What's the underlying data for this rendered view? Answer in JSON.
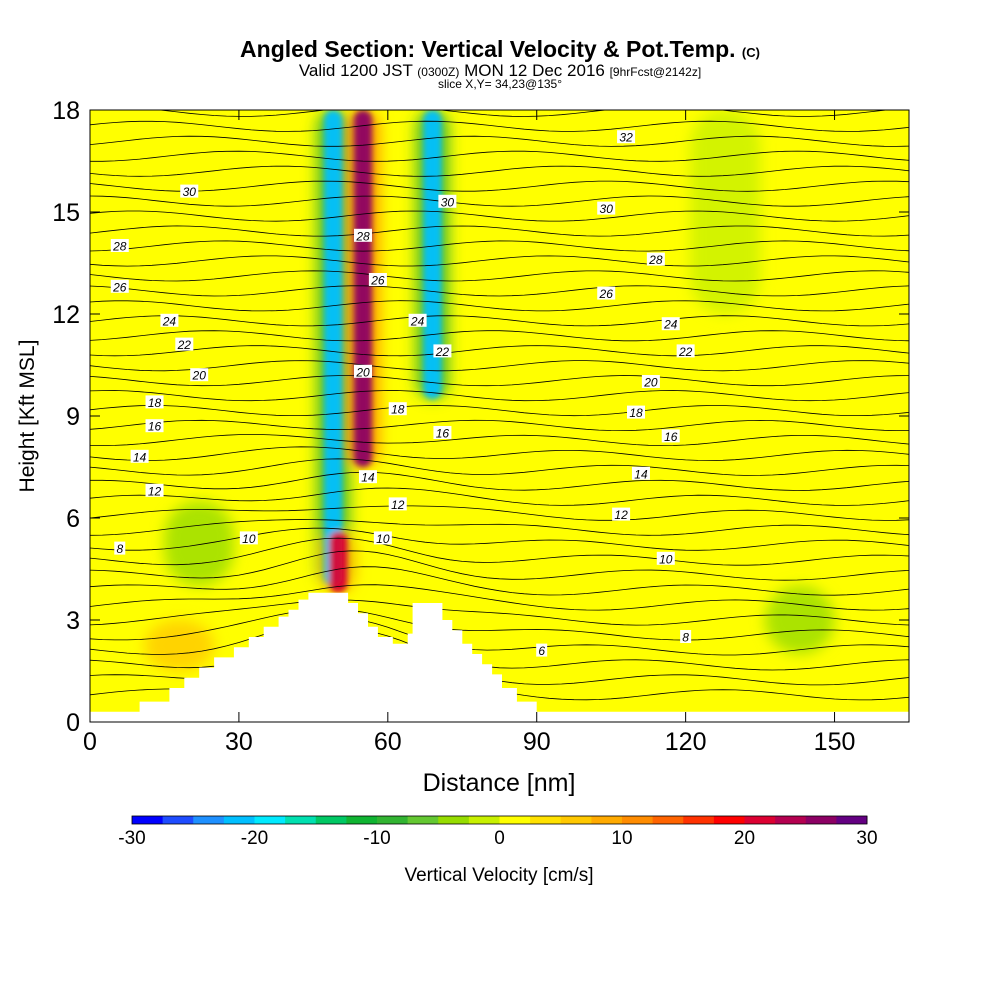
{
  "chart_data": {
    "type": "heatmap",
    "title": "Angled Section: Vertical Velocity & Pot.Temp.",
    "title_unit": "(C)",
    "subtitle": {
      "valid": "Valid 1200 JST",
      "utc": "(0300Z)",
      "date": "MON 12 Dec 2016",
      "forecast": "[9hrFcst@2142z]"
    },
    "slice_label": "slice X,Y= 34,23@135°",
    "xlabel": "Distance [nm]",
    "ylabel": "Height [Kft MSL]",
    "xlim": [
      0,
      165
    ],
    "ylim": [
      0,
      18
    ],
    "x_ticks": [
      "0",
      "30",
      "60",
      "90",
      "120",
      "150"
    ],
    "y_ticks": [
      "0",
      "3",
      "6",
      "9",
      "12",
      "15",
      "18"
    ],
    "colorbar": {
      "label": "Vertical Velocity [cm/s]",
      "range": [
        -30,
        30
      ],
      "tick_labels": [
        "-30",
        "-20",
        "-10",
        "0",
        "10",
        "20",
        "30"
      ],
      "colors": [
        "#0000ff",
        "#1e4cff",
        "#1e90ff",
        "#00bfff",
        "#00eaff",
        "#00e0b0",
        "#00c864",
        "#10b432",
        "#32b432",
        "#64c832",
        "#96dc00",
        "#c8f000",
        "#ffff00",
        "#ffe100",
        "#ffc800",
        "#ffaa00",
        "#ff8c00",
        "#ff6400",
        "#ff3200",
        "#ff0000",
        "#dc0032",
        "#b40050",
        "#8c0064",
        "#640082"
      ]
    },
    "theta_contour_labels": [
      {
        "value": "32",
        "x": 108,
        "y": 17.2
      },
      {
        "value": "30",
        "x": 20,
        "y": 15.6
      },
      {
        "value": "30",
        "x": 72,
        "y": 15.3
      },
      {
        "value": "30",
        "x": 104,
        "y": 15.1
      },
      {
        "value": "28",
        "x": 6,
        "y": 14.0
      },
      {
        "value": "28",
        "x": 55,
        "y": 14.3
      },
      {
        "value": "28",
        "x": 114,
        "y": 13.6
      },
      {
        "value": "26",
        "x": 6,
        "y": 12.8
      },
      {
        "value": "26",
        "x": 58,
        "y": 13.0
      },
      {
        "value": "26",
        "x": 104,
        "y": 12.6
      },
      {
        "value": "24",
        "x": 16,
        "y": 11.8
      },
      {
        "value": "24",
        "x": 66,
        "y": 11.8
      },
      {
        "value": "24",
        "x": 117,
        "y": 11.7
      },
      {
        "value": "22",
        "x": 19,
        "y": 11.1
      },
      {
        "value": "22",
        "x": 71,
        "y": 10.9
      },
      {
        "value": "22",
        "x": 120,
        "y": 10.9
      },
      {
        "value": "20",
        "x": 22,
        "y": 10.2
      },
      {
        "value": "20",
        "x": 55,
        "y": 10.3
      },
      {
        "value": "20",
        "x": 113,
        "y": 10.0
      },
      {
        "value": "18",
        "x": 13,
        "y": 9.4
      },
      {
        "value": "18",
        "x": 62,
        "y": 9.2
      },
      {
        "value": "18",
        "x": 110,
        "y": 9.1
      },
      {
        "value": "16",
        "x": 13,
        "y": 8.7
      },
      {
        "value": "16",
        "x": 71,
        "y": 8.5
      },
      {
        "value": "16",
        "x": 117,
        "y": 8.4
      },
      {
        "value": "14",
        "x": 10,
        "y": 7.8
      },
      {
        "value": "14",
        "x": 56,
        "y": 7.2
      },
      {
        "value": "14",
        "x": 111,
        "y": 7.3
      },
      {
        "value": "12",
        "x": 13,
        "y": 6.8
      },
      {
        "value": "12",
        "x": 62,
        "y": 6.4
      },
      {
        "value": "12",
        "x": 107,
        "y": 6.1
      },
      {
        "value": "10",
        "x": 32,
        "y": 5.4
      },
      {
        "value": "10",
        "x": 59,
        "y": 5.4
      },
      {
        "value": "10",
        "x": 116,
        "y": 4.8
      },
      {
        "value": "8",
        "x": 6,
        "y": 5.1
      },
      {
        "value": "8",
        "x": 120,
        "y": 2.5
      },
      {
        "value": "6",
        "x": 91,
        "y": 2.1
      }
    ],
    "terrain_profile": [
      [
        0,
        0.3
      ],
      [
        10,
        0.3
      ],
      [
        10,
        0.6
      ],
      [
        16,
        0.6
      ],
      [
        16,
        1.0
      ],
      [
        19,
        1.0
      ],
      [
        19,
        1.3
      ],
      [
        22,
        1.3
      ],
      [
        22,
        1.6
      ],
      [
        25,
        1.6
      ],
      [
        25,
        1.9
      ],
      [
        29,
        1.9
      ],
      [
        29,
        2.2
      ],
      [
        32,
        2.2
      ],
      [
        32,
        2.5
      ],
      [
        35,
        2.5
      ],
      [
        35,
        2.8
      ],
      [
        38,
        2.8
      ],
      [
        38,
        3.1
      ],
      [
        40,
        3.1
      ],
      [
        40,
        3.3
      ],
      [
        42,
        3.3
      ],
      [
        42,
        3.6
      ],
      [
        44,
        3.6
      ],
      [
        44,
        3.8
      ],
      [
        52,
        3.8
      ],
      [
        52,
        3.5
      ],
      [
        54,
        3.5
      ],
      [
        54,
        3.2
      ],
      [
        56,
        3.2
      ],
      [
        56,
        2.8
      ],
      [
        58,
        2.8
      ],
      [
        58,
        2.5
      ],
      [
        61,
        2.5
      ],
      [
        61,
        2.3
      ],
      [
        64,
        2.3
      ],
      [
        64,
        2.6
      ],
      [
        65,
        2.6
      ],
      [
        65,
        3.5
      ],
      [
        71,
        3.5
      ],
      [
        71,
        3.0
      ],
      [
        73,
        3.0
      ],
      [
        73,
        2.7
      ],
      [
        75,
        2.7
      ],
      [
        75,
        2.3
      ],
      [
        77,
        2.3
      ],
      [
        77,
        2.0
      ],
      [
        79,
        2.0
      ],
      [
        79,
        1.7
      ],
      [
        81,
        1.7
      ],
      [
        81,
        1.4
      ],
      [
        83,
        1.4
      ],
      [
        83,
        1.0
      ],
      [
        86,
        1.0
      ],
      [
        86,
        0.6
      ],
      [
        90,
        0.6
      ],
      [
        90,
        0.3
      ],
      [
        165,
        0.3
      ]
    ],
    "velocity_features": [
      {
        "x": 49,
        "y_range": [
          4.0,
          18
        ],
        "value": -22
      },
      {
        "x": 55,
        "y_range": [
          7.5,
          18
        ],
        "value": 25
      },
      {
        "x": 50,
        "y_range": [
          3.8,
          5.6
        ],
        "value": 22
      },
      {
        "x": 69,
        "y_range": [
          9.5,
          18
        ],
        "value": -22
      },
      {
        "x": 128,
        "y_range": [
          12,
          18
        ],
        "value": -4
      },
      {
        "x": 22,
        "y_range": [
          4.0,
          6.5
        ],
        "value": -8
      },
      {
        "x": 143,
        "y_range": [
          2.0,
          4.0
        ],
        "value": -8
      },
      {
        "x": 18,
        "y_range": [
          1.5,
          3.0
        ],
        "value": 14
      }
    ]
  }
}
